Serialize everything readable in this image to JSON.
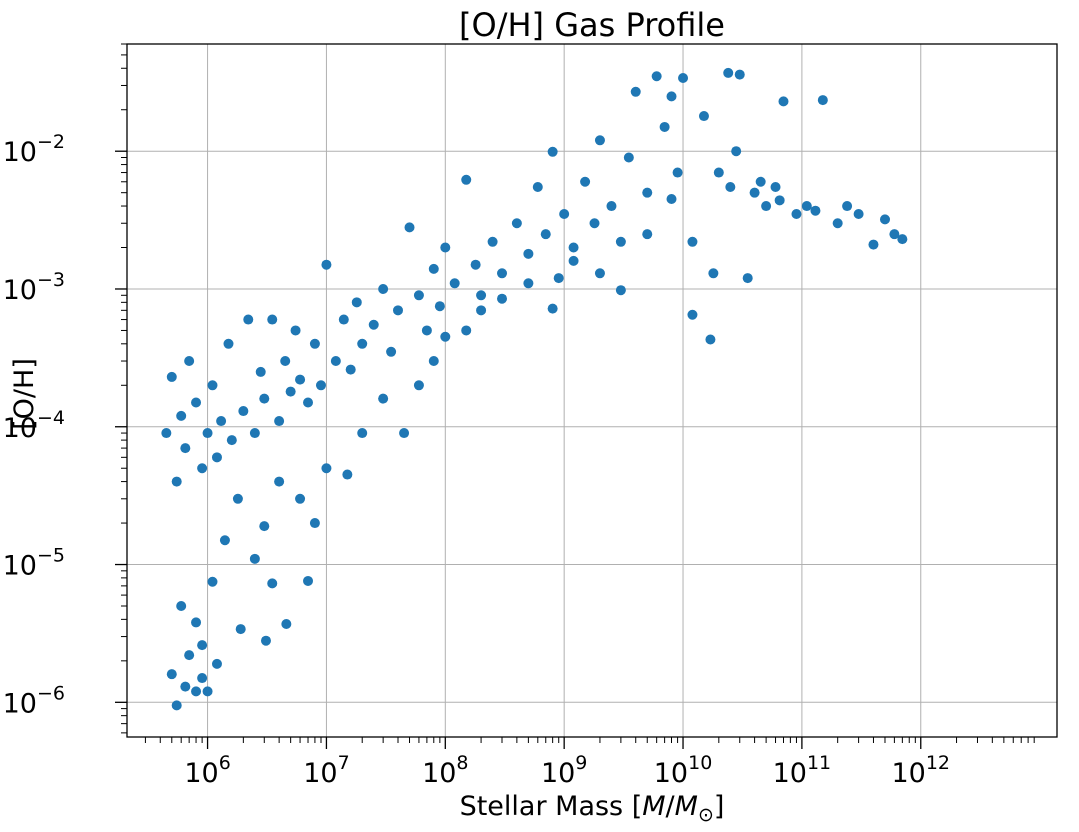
{
  "chart_data": {
    "type": "scatter",
    "title": "[O/H] Gas Profile",
    "xlabel_prefix": "Stellar Mass [",
    "xlabel_math_m": "M",
    "xlabel_math_slash": "/",
    "xlabel_math_msun": "M",
    "xlabel_math_sub": "⊙",
    "xlabel_suffix": "]",
    "ylabel": "[O/H]",
    "x_scale": "log",
    "y_scale": "log",
    "xlim": [
      210000,
      14000000000000
    ],
    "ylim": [
      5.6e-07,
      0.06
    ],
    "grid": true,
    "marker_color": "#1f77b4",
    "x_ticks": [
      {
        "base": "10",
        "exp": "6",
        "value": 1000000.0
      },
      {
        "base": "10",
        "exp": "7",
        "value": 10000000.0
      },
      {
        "base": "10",
        "exp": "8",
        "value": 100000000.0
      },
      {
        "base": "10",
        "exp": "9",
        "value": 1000000000.0
      },
      {
        "base": "10",
        "exp": "10",
        "value": 10000000000.0
      },
      {
        "base": "10",
        "exp": "11",
        "value": 100000000000.0
      },
      {
        "base": "10",
        "exp": "12",
        "value": 1000000000000.0
      }
    ],
    "y_ticks": [
      {
        "base": "10",
        "exp": "−2",
        "value": 0.01
      },
      {
        "base": "10",
        "exp": "−3",
        "value": 0.001
      },
      {
        "base": "10",
        "exp": "−4",
        "value": 0.0001
      },
      {
        "base": "10",
        "exp": "−5",
        "value": 1e-05
      },
      {
        "base": "10",
        "exp": "−6",
        "value": 1e-06
      }
    ],
    "series": [
      {
        "points": [
          [
            450000.0,
            9e-05
          ],
          [
            500000.0,
            0.00023
          ],
          [
            550000.0,
            4e-05
          ],
          [
            600000.0,
            0.00012
          ],
          [
            650000.0,
            7e-05
          ],
          [
            700000.0,
            0.0003
          ],
          [
            800000.0,
            0.00015
          ],
          [
            900000.0,
            5e-05
          ],
          [
            1000000.0,
            9e-05
          ],
          [
            1100000.0,
            0.0002
          ],
          [
            1200000.0,
            6e-05
          ],
          [
            1300000.0,
            0.00011
          ],
          [
            1500000.0,
            0.0004
          ],
          [
            1600000.0,
            8e-05
          ],
          [
            1800000.0,
            3e-05
          ],
          [
            2000000.0,
            0.00013
          ],
          [
            2200000.0,
            0.0006
          ],
          [
            2500000.0,
            9e-05
          ],
          [
            2800000.0,
            0.00025
          ],
          [
            3000000.0,
            0.00016
          ],
          [
            3500000.0,
            0.0006
          ],
          [
            4000000.0,
            0.00011
          ],
          [
            4500000.0,
            0.0003
          ],
          [
            5000000.0,
            0.00018
          ],
          [
            5500000.0,
            0.0005
          ],
          [
            6000000.0,
            0.00022
          ],
          [
            7000000.0,
            0.00015
          ],
          [
            8000000.0,
            0.0004
          ],
          [
            9000000.0,
            0.0002
          ],
          [
            10000000.0,
            0.0015
          ],
          [
            12000000.0,
            0.0003
          ],
          [
            14000000.0,
            0.0006
          ],
          [
            16000000.0,
            0.00026
          ],
          [
            18000000.0,
            0.0008
          ],
          [
            20000000.0,
            0.0004
          ],
          [
            25000000.0,
            0.00055
          ],
          [
            30000000.0,
            0.001
          ],
          [
            35000000.0,
            0.00035
          ],
          [
            40000000.0,
            0.0007
          ],
          [
            50000000.0,
            0.0028
          ],
          [
            60000000.0,
            0.0009
          ],
          [
            70000000.0,
            0.0005
          ],
          [
            80000000.0,
            0.0014
          ],
          [
            90000000.0,
            0.00075
          ],
          [
            100000000.0,
            0.002
          ],
          [
            120000000.0,
            0.0011
          ],
          [
            150000000.0,
            0.0062
          ],
          [
            180000000.0,
            0.0015
          ],
          [
            200000000.0,
            0.0009
          ],
          [
            250000000.0,
            0.0022
          ],
          [
            300000000.0,
            0.0013
          ],
          [
            400000000.0,
            0.003
          ],
          [
            500000000.0,
            0.0018
          ],
          [
            600000000.0,
            0.0055
          ],
          [
            700000000.0,
            0.0025
          ],
          [
            800000000.0,
            0.0099
          ],
          [
            900000000.0,
            0.0012
          ],
          [
            1000000000.0,
            0.0035
          ],
          [
            1200000000.0,
            0.002
          ],
          [
            1500000000.0,
            0.006
          ],
          [
            1800000000.0,
            0.003
          ],
          [
            2000000000.0,
            0.012
          ],
          [
            2500000000.0,
            0.004
          ],
          [
            3000000000.0,
            0.0022
          ],
          [
            3500000000.0,
            0.009
          ],
          [
            4000000000.0,
            0.027
          ],
          [
            5000000000.0,
            0.005
          ],
          [
            6000000000.0,
            0.035
          ],
          [
            7000000000.0,
            0.015
          ],
          [
            8000000000.0,
            0.025
          ],
          [
            9000000000.0,
            0.007
          ],
          [
            10000000000.0,
            0.034
          ],
          [
            12000000000.0,
            0.00065
          ],
          [
            15000000000.0,
            0.018
          ],
          [
            17000000000.0,
            0.00043
          ],
          [
            20000000000.0,
            0.007
          ],
          [
            24000000000.0,
            0.037
          ],
          [
            28000000000.0,
            0.01
          ],
          [
            30000000000.0,
            0.036
          ],
          [
            35000000000.0,
            0.0012
          ],
          [
            40000000000.0,
            0.005
          ],
          [
            50000000000.0,
            0.004
          ],
          [
            60000000000.0,
            0.0055
          ],
          [
            70000000000.0,
            0.023
          ],
          [
            90000000000.0,
            0.0035
          ],
          [
            110000000000.0,
            0.004
          ],
          [
            150000000000.0,
            0.0235
          ],
          [
            200000000000.0,
            0.003
          ],
          [
            300000000000.0,
            0.0035
          ],
          [
            400000000000.0,
            0.0021
          ],
          [
            500000000000.0,
            0.0032
          ],
          [
            600000000000.0,
            0.0025
          ],
          [
            700000000000.0,
            0.0023
          ],
          [
            550000.0,
            9.5e-07
          ],
          [
            650000.0,
            1.3e-06
          ],
          [
            700000.0,
            2.2e-06
          ],
          [
            800000.0,
            1.2e-06
          ],
          [
            900000.0,
            1.5e-06
          ],
          [
            1000000.0,
            1.2e-06
          ],
          [
            1200000.0,
            1.9e-06
          ],
          [
            1900000.0,
            3.4e-06
          ],
          [
            3100000.0,
            2.8e-06
          ],
          [
            4600000.0,
            3.7e-06
          ],
          [
            3500000.0,
            7.3e-06
          ],
          [
            7000000.0,
            7.6e-06
          ],
          [
            500000.0,
            1.6e-06
          ],
          [
            600000.0,
            5e-06
          ],
          [
            800000.0,
            3.8e-06
          ],
          [
            1100000.0,
            7.5e-06
          ],
          [
            900000.0,
            2.6e-06
          ],
          [
            1400000.0,
            1.5e-05
          ],
          [
            2500000.0,
            1.1e-05
          ],
          [
            3000000.0,
            1.9e-05
          ],
          [
            4000000.0,
            4e-05
          ],
          [
            6000000.0,
            3e-05
          ],
          [
            8000000.0,
            2e-05
          ],
          [
            10000000.0,
            5e-05
          ],
          [
            15000000.0,
            4.5e-05
          ],
          [
            20000000.0,
            9e-05
          ],
          [
            30000000.0,
            0.00016
          ],
          [
            45000000.0,
            9e-05
          ],
          [
            60000000.0,
            0.0002
          ],
          [
            80000000.0,
            0.0003
          ],
          [
            100000000.0,
            0.00045
          ],
          [
            150000000.0,
            0.0005
          ],
          [
            200000000.0,
            0.0007
          ],
          [
            300000000.0,
            0.00085
          ],
          [
            500000000.0,
            0.0011
          ],
          [
            800000000.0,
            0.00072
          ],
          [
            1200000000.0,
            0.0016
          ],
          [
            2000000000.0,
            0.0013
          ],
          [
            3000000000.0,
            0.00098
          ],
          [
            5000000000.0,
            0.0025
          ],
          [
            8000000000.0,
            0.0045
          ],
          [
            12000000000.0,
            0.0022
          ],
          [
            18000000000.0,
            0.0013
          ],
          [
            25000000000.0,
            0.0055
          ],
          [
            45000000000.0,
            0.006
          ],
          [
            65000000000.0,
            0.0044
          ],
          [
            130000000000.0,
            0.0037
          ],
          [
            240000000000.0,
            0.004
          ]
        ]
      }
    ]
  }
}
